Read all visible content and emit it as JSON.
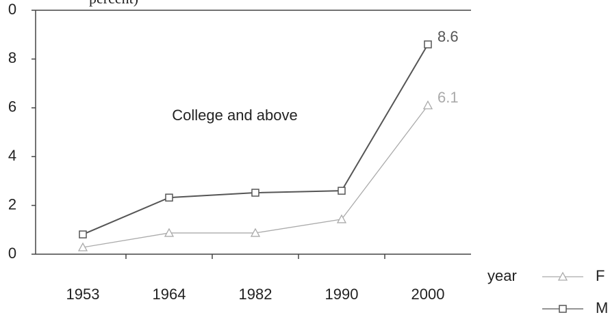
{
  "chart_data": {
    "type": "line",
    "title": "percent)",
    "annotation": "College and above",
    "x_label": "year",
    "categories": [
      "1953",
      "1964",
      "1982",
      "1990",
      "2000"
    ],
    "series": [
      {
        "name": "F",
        "color": "#aaaaaa",
        "marker": "triangle",
        "values": [
          0.28,
          0.87,
          0.87,
          1.43,
          6.1
        ]
      },
      {
        "name": "M",
        "color": "#555555",
        "marker": "square",
        "values": [
          0.81,
          2.32,
          2.52,
          2.6,
          8.6
        ]
      }
    ],
    "ylim": [
      0,
      10
    ],
    "yticks": [
      0,
      2,
      4,
      6,
      8,
      {
        "value": 10,
        "label": "0"
      }
    ]
  }
}
